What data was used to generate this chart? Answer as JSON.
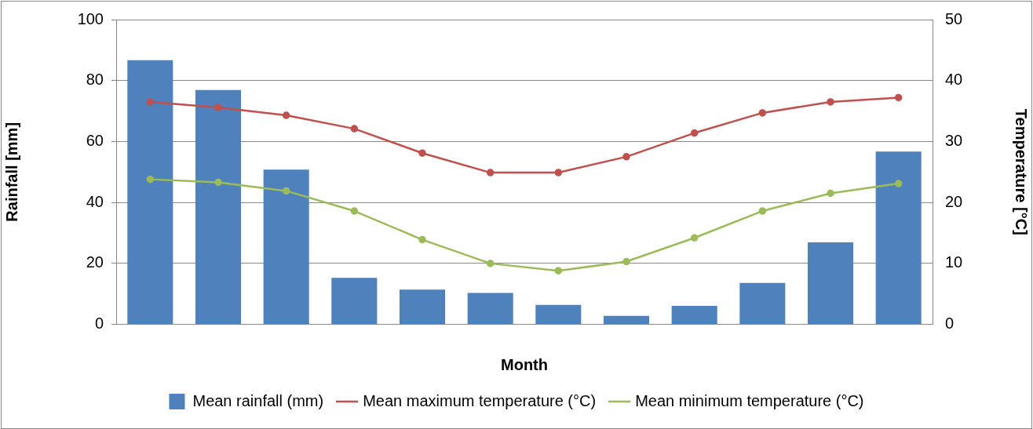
{
  "chart_data": {
    "type": "bar",
    "xlabel": "Month",
    "ylabel": "Rainfall [mm]",
    "y2label": "Temperature [°C]",
    "categories": [
      null,
      null,
      null,
      null,
      null,
      null,
      null,
      null,
      null,
      null,
      null,
      null
    ],
    "series": [
      {
        "name": "Mean rainfall (mm)",
        "color": "#4f81bd",
        "values": [
          86.7,
          76.9,
          50.8,
          15.3,
          11.4,
          10.3,
          6.4,
          2.8,
          6.1,
          13.6,
          26.9,
          56.7
        ]
      },
      {
        "name": "Mean maximum temperature (°C)",
        "type": "line",
        "axis": "y2",
        "color": "#c0504d",
        "marker": "circle",
        "values": [
          36.5,
          35.6,
          34.3,
          32.1,
          28.1,
          24.9,
          24.9,
          27.5,
          31.4,
          34.7,
          36.5,
          37.2
        ]
      },
      {
        "name": "Mean minimum temperature (°C)",
        "type": "line",
        "axis": "y2",
        "color": "#9bbb59",
        "marker": "circle",
        "values": [
          23.8,
          23.3,
          21.9,
          18.6,
          13.9,
          10.0,
          8.8,
          10.3,
          14.2,
          18.6,
          21.5,
          23.1
        ]
      }
    ],
    "ylim": [
      0,
      100
    ],
    "yticks": [
      0,
      20,
      40,
      60,
      80,
      100
    ],
    "y2lim": [
      0,
      50
    ],
    "y2ticks": [
      0,
      10,
      20,
      30,
      40,
      50
    ],
    "grid": "y",
    "legend": "bottom"
  }
}
